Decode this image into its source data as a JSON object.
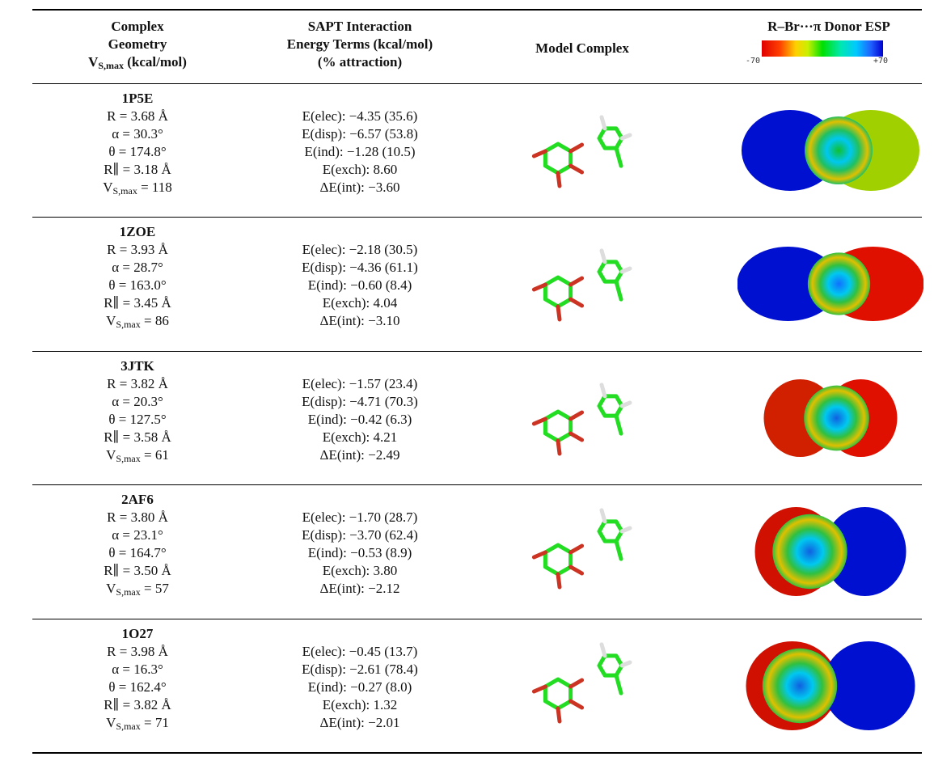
{
  "header": {
    "geometry": {
      "lines": [
        "Complex",
        "Geometry"
      ],
      "vsmax": {
        "main": "V",
        "sub": "S,max",
        "rest": " (kcal/mol)"
      }
    },
    "sapt": [
      "SAPT Interaction",
      "Energy Terms (kcal/mol)",
      "(% attraction)"
    ],
    "model": "Model Complex",
    "esp": {
      "title": "R–Br···π Donor ESP",
      "scale": [
        "-70",
        "+70"
      ]
    }
  },
  "rows": [
    {
      "name": "1P5E",
      "geometry": [
        "R = 3.68 Å",
        "α = 30.3°",
        "θ = 174.8°",
        "R∥ = 3.18 Å"
      ],
      "vsmax": {
        "main": "V",
        "sub": "S,max",
        "rest": " = 118"
      },
      "sapt": [
        "E(elec): −4.35 (35.6)",
        "E(disp): −6.57 (53.8)",
        "E(ind): −1.28 (10.5)",
        "E(exch): 8.60",
        "ΔE(int): −3.60"
      ]
    },
    {
      "name": "1ZOE",
      "geometry": [
        "R = 3.93 Å",
        "α = 28.7°",
        "θ = 163.0°",
        "R∥ = 3.45 Å"
      ],
      "vsmax": {
        "main": "V",
        "sub": "S,max",
        "rest": " = 86"
      },
      "sapt": [
        "E(elec): −2.18 (30.5)",
        "E(disp): −4.36 (61.1)",
        "E(ind): −0.60 (8.4)",
        "E(exch): 4.04",
        "ΔE(int): −3.10"
      ]
    },
    {
      "name": "3JTK",
      "geometry": [
        "R = 3.82 Å",
        "α = 20.3°",
        "θ = 127.5°",
        "R∥ = 3.58 Å"
      ],
      "vsmax": {
        "main": "V",
        "sub": "S,max",
        "rest": " = 61"
      },
      "sapt": [
        "E(elec): −1.57 (23.4)",
        "E(disp): −4.71 (70.3)",
        "E(ind): −0.42 (6.3)",
        "E(exch): 4.21",
        "ΔE(int): −2.49"
      ]
    },
    {
      "name": "2AF6",
      "geometry": [
        "R = 3.80 Å",
        "α = 23.1°",
        "θ = 164.7°",
        "R∥ = 3.50 Å"
      ],
      "vsmax": {
        "main": "V",
        "sub": "S,max",
        "rest": " = 57"
      },
      "sapt": [
        "E(elec): −1.70 (28.7)",
        "E(disp): −3.70 (62.4)",
        "E(ind): −0.53 (8.9)",
        "E(exch): 3.80",
        "ΔE(int): −2.12"
      ]
    },
    {
      "name": "1O27",
      "geometry": [
        "R = 3.98 Å",
        "α = 16.3°",
        "θ = 162.4°",
        "R∥ = 3.82 Å"
      ],
      "vsmax": {
        "main": "V",
        "sub": "S,max",
        "rest": " = 71"
      },
      "sapt": [
        "E(elec): −0.45 (13.7)",
        "E(disp): −2.61 (78.4)",
        "E(ind): −0.27 (8.0)",
        "E(exch): 1.32",
        "ΔE(int): −2.01"
      ]
    }
  ]
}
